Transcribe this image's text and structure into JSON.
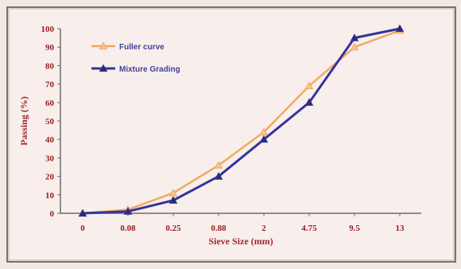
{
  "chart_data": {
    "type": "line",
    "categories": [
      "0",
      "0.08",
      "0.25",
      "0.88",
      "2",
      "4.75",
      "9.5",
      "13"
    ],
    "series": [
      {
        "name": "Fuller curve",
        "color": "#f0ab62",
        "marker": "triangle",
        "values": [
          0,
          2,
          11,
          26,
          44,
          69,
          90,
          99
        ]
      },
      {
        "name": "Mixture Grading",
        "color": "#34349a",
        "marker": "triangle",
        "values": [
          0,
          1,
          7,
          20,
          40,
          60,
          95,
          100
        ]
      }
    ],
    "xlabel": "Sieve Size (mm)",
    "ylabel": "Passing (%)",
    "ylim": [
      0,
      100
    ],
    "yticks": [
      "0",
      "10",
      "20",
      "30",
      "40",
      "50",
      "60",
      "70",
      "80",
      "90",
      "100"
    ],
    "grid": false,
    "legend_position": "top-left"
  }
}
